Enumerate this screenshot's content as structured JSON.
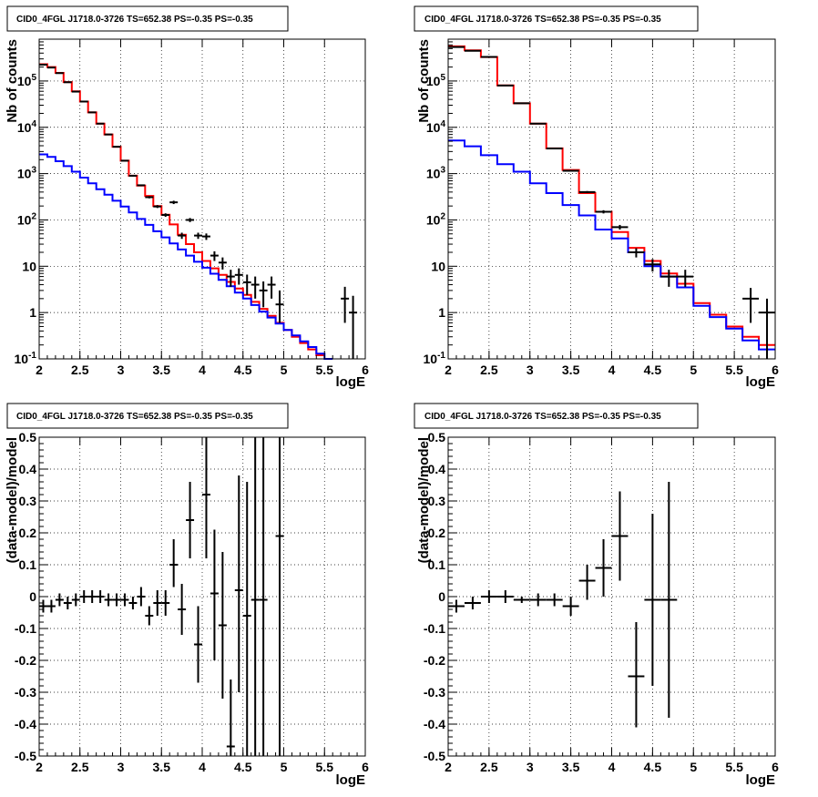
{
  "chart_data": [
    {
      "type": "line",
      "panel": "top-left",
      "title": "CID0_4FGL J1718.0-3726 TS=652.38 PS=-0.35 PS=-0.35",
      "xlabel": "logE",
      "ylabel": "Nb of counts",
      "xlim": [
        2,
        6
      ],
      "ylim": [
        0.1,
        800000
      ],
      "yscale": "log",
      "grid": true,
      "xticks": [
        "2",
        "2.5",
        "3",
        "3.5",
        "4",
        "4.5",
        "5",
        "5.5",
        "6"
      ],
      "yticks": [
        {
          "v": 0.1,
          "label": "10^-1"
        },
        {
          "v": 1,
          "label": "1"
        },
        {
          "v": 10,
          "label": "10"
        },
        {
          "v": 100,
          "label": "10^2"
        },
        {
          "v": 1000,
          "label": "10^3"
        },
        {
          "v": 10000,
          "label": "10^4"
        },
        {
          "v": 100000,
          "label": "10^5"
        }
      ],
      "bin_edges": [
        2.0,
        2.1,
        2.2,
        2.3,
        2.4,
        2.5,
        2.6,
        2.7,
        2.8,
        2.9,
        3.0,
        3.1,
        3.2,
        3.3,
        3.4,
        3.5,
        3.6,
        3.7,
        3.8,
        3.9,
        4.0,
        4.1,
        4.2,
        4.3,
        4.4,
        4.5,
        4.6,
        4.7,
        4.8,
        4.9,
        5.0,
        5.1,
        5.2,
        5.3,
        5.4,
        5.5,
        5.6,
        5.7,
        5.8,
        5.9,
        6.0
      ],
      "series": [
        {
          "name": "",
          "style": "step",
          "color": "#ff0000",
          "values": [
            230000,
            200000,
            150000,
            95000,
            60000,
            36000,
            21000,
            12000,
            7000,
            3800,
            1900,
            900,
            550,
            330,
            200,
            130,
            80,
            48,
            30,
            20,
            13,
            9,
            6.5,
            4.6,
            3.3,
            2.4,
            1.7,
            1.2,
            0.85,
            0.6,
            0.42,
            0.3,
            0.22,
            0.16,
            0.12
          ]
        },
        {
          "name": "",
          "style": "step",
          "color": "#0000ff",
          "values": [
            2600,
            2300,
            1850,
            1450,
            1100,
            820,
            620,
            460,
            350,
            260,
            195,
            145,
            105,
            78,
            57,
            42,
            31,
            23,
            17,
            12.5,
            9.3,
            6.9,
            5.1,
            3.7,
            2.7,
            2.0,
            1.45,
            1.05,
            0.78,
            0.58,
            0.42,
            0.32,
            0.24,
            0.18,
            0.13,
            0.1
          ]
        },
        {
          "name": "",
          "style": "errorbar",
          "color": "#000000",
          "points": [
            {
              "x": 2.05,
              "y": 225000,
              "ylo": 225000,
              "yhi": 226000
            },
            {
              "x": 2.15,
              "y": 195000,
              "ylo": 194000,
              "yhi": 196000
            },
            {
              "x": 2.25,
              "y": 148000,
              "ylo": 147000,
              "yhi": 149000
            },
            {
              "x": 2.35,
              "y": 94000,
              "ylo": 93000,
              "yhi": 95000
            },
            {
              "x": 2.45,
              "y": 59000,
              "ylo": 58500,
              "yhi": 59500
            },
            {
              "x": 2.55,
              "y": 36000,
              "ylo": 35600,
              "yhi": 36400
            },
            {
              "x": 2.65,
              "y": 21000,
              "ylo": 20700,
              "yhi": 21300
            },
            {
              "x": 2.75,
              "y": 12000,
              "ylo": 11800,
              "yhi": 12200
            },
            {
              "x": 2.85,
              "y": 7000,
              "ylo": 6900,
              "yhi": 7100
            },
            {
              "x": 2.95,
              "y": 3800,
              "ylo": 3740,
              "yhi": 3860
            },
            {
              "x": 3.05,
              "y": 1900,
              "ylo": 1860,
              "yhi": 1940
            },
            {
              "x": 3.15,
              "y": 900,
              "ylo": 870,
              "yhi": 930
            },
            {
              "x": 3.25,
              "y": 560,
              "ylo": 536,
              "yhi": 584
            },
            {
              "x": 3.35,
              "y": 310,
              "ylo": 292,
              "yhi": 328
            },
            {
              "x": 3.45,
              "y": 195,
              "ylo": 181,
              "yhi": 209
            },
            {
              "x": 3.55,
              "y": 128,
              "ylo": 117,
              "yhi": 139
            },
            {
              "x": 3.65,
              "y": 240,
              "ylo": 220,
              "yhi": 260
            },
            {
              "x": 3.75,
              "y": 46,
              "ylo": 39,
              "yhi": 53
            },
            {
              "x": 3.85,
              "y": 100,
              "ylo": 90,
              "yhi": 110
            },
            {
              "x": 3.95,
              "y": 46,
              "ylo": 39,
              "yhi": 53
            },
            {
              "x": 4.05,
              "y": 44,
              "ylo": 37,
              "yhi": 51
            },
            {
              "x": 4.15,
              "y": 17,
              "ylo": 13,
              "yhi": 21
            },
            {
              "x": 4.25,
              "y": 12,
              "ylo": 8.5,
              "yhi": 15.5
            },
            {
              "x": 4.35,
              "y": 6,
              "ylo": 3.6,
              "yhi": 8.4
            },
            {
              "x": 4.45,
              "y": 6.5,
              "ylo": 4,
              "yhi": 9
            },
            {
              "x": 4.55,
              "y": 4.5,
              "ylo": 2.4,
              "yhi": 6.6
            },
            {
              "x": 4.65,
              "y": 4,
              "ylo": 2,
              "yhi": 6
            },
            {
              "x": 4.75,
              "y": 3,
              "ylo": 1.3,
              "yhi": 4.7
            },
            {
              "x": 4.85,
              "y": 4,
              "ylo": 2,
              "yhi": 6
            },
            {
              "x": 4.95,
              "y": 1.5,
              "ylo": 0.6,
              "yhi": 3
            },
            {
              "x": 5.75,
              "y": 2,
              "ylo": 0.6,
              "yhi": 3.6
            },
            {
              "x": 5.85,
              "y": 1,
              "ylo": 0.1,
              "yhi": 2.3
            }
          ]
        }
      ]
    },
    {
      "type": "line",
      "panel": "top-right",
      "title": "CID0_4FGL J1718.0-3726 TS=652.38 PS=-0.35 PS=-0.35",
      "xlabel": "logE",
      "ylabel": "Nb of counts",
      "xlim": [
        2,
        6
      ],
      "ylim": [
        0.1,
        800000
      ],
      "yscale": "log",
      "grid": true,
      "xticks": [
        "2",
        "2.5",
        "3",
        "3.5",
        "4",
        "4.5",
        "5",
        "5.5",
        "6"
      ],
      "yticks": [
        {
          "v": 0.1,
          "label": "10^-1"
        },
        {
          "v": 1,
          "label": "1"
        },
        {
          "v": 10,
          "label": "10"
        },
        {
          "v": 100,
          "label": "10^2"
        },
        {
          "v": 1000,
          "label": "10^3"
        },
        {
          "v": 10000,
          "label": "10^4"
        },
        {
          "v": 100000,
          "label": "10^5"
        }
      ],
      "bin_edges": [
        2.0,
        2.2,
        2.4,
        2.6,
        2.8,
        3.0,
        3.2,
        3.4,
        3.6,
        3.8,
        4.0,
        4.2,
        4.4,
        4.6,
        4.8,
        5.0,
        5.2,
        5.4,
        5.6,
        5.8,
        6.0
      ],
      "series": [
        {
          "name": "",
          "style": "step",
          "color": "#ff0000",
          "values": [
            560000,
            460000,
            330000,
            80000,
            33000,
            12000,
            3500,
            1200,
            380,
            150,
            55,
            25,
            13,
            7,
            4.2,
            1.6,
            0.9,
            0.5,
            0.3,
            0.2
          ]
        },
        {
          "name": "",
          "style": "step",
          "color": "#0000ff",
          "values": [
            5200,
            3900,
            2500,
            1600,
            1100,
            620,
            380,
            210,
            125,
            62,
            40,
            20,
            10,
            6,
            3.5,
            1.4,
            0.8,
            0.45,
            0.25,
            0.16
          ]
        },
        {
          "name": "",
          "style": "errorbar",
          "color": "#000000",
          "points": [
            {
              "x": 2.1,
              "y": 540000,
              "ylo": 539000,
              "yhi": 541000
            },
            {
              "x": 2.3,
              "y": 450000,
              "ylo": 449000,
              "yhi": 451000
            },
            {
              "x": 2.5,
              "y": 330000,
              "ylo": 329000,
              "yhi": 331000
            },
            {
              "x": 2.7,
              "y": 80000,
              "ylo": 79700,
              "yhi": 80300
            },
            {
              "x": 2.9,
              "y": 33000,
              "ylo": 32800,
              "yhi": 33200
            },
            {
              "x": 3.1,
              "y": 12000,
              "ylo": 11900,
              "yhi": 12100
            },
            {
              "x": 3.3,
              "y": 3500,
              "ylo": 3440,
              "yhi": 3560
            },
            {
              "x": 3.5,
              "y": 1150,
              "ylo": 1116,
              "yhi": 1184
            },
            {
              "x": 3.7,
              "y": 400,
              "ylo": 380,
              "yhi": 420
            },
            {
              "x": 3.9,
              "y": 150,
              "ylo": 138,
              "yhi": 162
            },
            {
              "x": 4.1,
              "y": 70,
              "ylo": 62,
              "yhi": 78
            },
            {
              "x": 4.3,
              "y": 20,
              "ylo": 15.5,
              "yhi": 24.5
            },
            {
              "x": 4.5,
              "y": 11,
              "ylo": 7.7,
              "yhi": 14.3
            },
            {
              "x": 4.7,
              "y": 6,
              "ylo": 3.6,
              "yhi": 8.4
            },
            {
              "x": 4.9,
              "y": 6,
              "ylo": 3.6,
              "yhi": 8.4
            },
            {
              "x": 5.7,
              "y": 2,
              "ylo": 0.6,
              "yhi": 3.4
            },
            {
              "x": 5.9,
              "y": 1,
              "ylo": 0.1,
              "yhi": 2
            }
          ]
        }
      ]
    },
    {
      "type": "scatter",
      "panel": "bottom-left",
      "title": "CID0_4FGL J1718.0-3726 TS=652.38 PS=-0.35 PS=-0.35",
      "xlabel": "logE",
      "ylabel": "(data-model)/model",
      "xlim": [
        2,
        6
      ],
      "ylim": [
        -0.5,
        0.5
      ],
      "grid": true,
      "xticks": [
        "2",
        "2.5",
        "3",
        "3.5",
        "4",
        "4.5",
        "5",
        "5.5",
        "6"
      ],
      "yticks": [
        "-0.5",
        "-0.4",
        "-0.3",
        "-0.2",
        "-0.1",
        "0",
        "0.1",
        "0.2",
        "0.3",
        "0.4",
        "0.5"
      ],
      "xerr": 0.05,
      "series": [
        {
          "name": "",
          "style": "errorbar",
          "color": "#000000",
          "points": [
            {
              "x": 2.05,
              "y": -0.03,
              "ylo": -0.05,
              "yhi": -0.01
            },
            {
              "x": 2.15,
              "y": -0.03,
              "ylo": -0.05,
              "yhi": -0.01
            },
            {
              "x": 2.25,
              "y": -0.01,
              "ylo": -0.03,
              "yhi": 0.01
            },
            {
              "x": 2.35,
              "y": -0.02,
              "ylo": -0.04,
              "yhi": 0.0
            },
            {
              "x": 2.45,
              "y": -0.01,
              "ylo": -0.03,
              "yhi": 0.01
            },
            {
              "x": 2.55,
              "y": 0.0,
              "ylo": -0.02,
              "yhi": 0.02
            },
            {
              "x": 2.65,
              "y": 0.0,
              "ylo": -0.02,
              "yhi": 0.02
            },
            {
              "x": 2.75,
              "y": 0.0,
              "ylo": -0.02,
              "yhi": 0.02
            },
            {
              "x": 2.85,
              "y": -0.01,
              "ylo": -0.03,
              "yhi": 0.01
            },
            {
              "x": 2.95,
              "y": -0.01,
              "ylo": -0.03,
              "yhi": 0.01
            },
            {
              "x": 3.05,
              "y": -0.01,
              "ylo": -0.03,
              "yhi": 0.01
            },
            {
              "x": 3.15,
              "y": -0.02,
              "ylo": -0.04,
              "yhi": 0.0
            },
            {
              "x": 3.25,
              "y": 0.0,
              "ylo": -0.03,
              "yhi": 0.03
            },
            {
              "x": 3.35,
              "y": -0.06,
              "ylo": -0.09,
              "yhi": -0.03
            },
            {
              "x": 3.45,
              "y": -0.02,
              "ylo": -0.06,
              "yhi": 0.02
            },
            {
              "x": 3.55,
              "y": -0.02,
              "ylo": -0.06,
              "yhi": 0.02
            },
            {
              "x": 3.65,
              "y": 0.1,
              "ylo": 0.03,
              "yhi": 0.18
            },
            {
              "x": 3.75,
              "y": -0.04,
              "ylo": -0.12,
              "yhi": 0.04
            },
            {
              "x": 3.85,
              "y": 0.24,
              "ylo": 0.12,
              "yhi": 0.36
            },
            {
              "x": 3.95,
              "y": -0.15,
              "ylo": -0.27,
              "yhi": -0.03
            },
            {
              "x": 4.05,
              "y": 0.32,
              "ylo": 0.12,
              "yhi": 0.52
            },
            {
              "x": 4.15,
              "y": 0.01,
              "ylo": -0.2,
              "yhi": 0.21
            },
            {
              "x": 4.25,
              "y": -0.09,
              "ylo": -0.32,
              "yhi": 0.14
            },
            {
              "x": 4.35,
              "y": -0.47,
              "ylo": -0.74,
              "yhi": -0.26
            },
            {
              "x": 4.45,
              "y": 0.02,
              "ylo": -0.3,
              "yhi": 0.38
            },
            {
              "x": 4.55,
              "y": -0.06,
              "ylo": -0.5,
              "yhi": 0.36
            },
            {
              "x": 4.65,
              "y": -0.01,
              "ylo": -0.5,
              "yhi": 0.5
            },
            {
              "x": 4.75,
              "y": -0.01,
              "ylo": -0.5,
              "yhi": 0.5
            },
            {
              "x": 4.95,
              "y": 0.19,
              "ylo": -0.5,
              "yhi": 0.5
            }
          ]
        }
      ]
    },
    {
      "type": "scatter",
      "panel": "bottom-right",
      "title": "CID0_4FGL J1718.0-3726 TS=652.38 PS=-0.35 PS=-0.35",
      "xlabel": "logE",
      "ylabel": "(data-model)/model",
      "xlim": [
        2,
        6
      ],
      "ylim": [
        -0.5,
        0.5
      ],
      "grid": true,
      "xticks": [
        "2",
        "2.5",
        "3",
        "3.5",
        "4",
        "4.5",
        "5",
        "5.5",
        "6"
      ],
      "yticks": [
        "-0.5",
        "-0.4",
        "-0.3",
        "-0.2",
        "-0.1",
        "0",
        "0.1",
        "0.2",
        "0.3",
        "0.4",
        "0.5"
      ],
      "xerr": 0.1,
      "series": [
        {
          "name": "",
          "style": "errorbar",
          "color": "#000000",
          "points": [
            {
              "x": 2.1,
              "y": -0.03,
              "ylo": -0.05,
              "yhi": -0.01
            },
            {
              "x": 2.3,
              "y": -0.02,
              "ylo": -0.04,
              "yhi": 0.0
            },
            {
              "x": 2.5,
              "y": 0.0,
              "ylo": -0.02,
              "yhi": 0.02
            },
            {
              "x": 2.7,
              "y": 0.0,
              "ylo": -0.02,
              "yhi": 0.02
            },
            {
              "x": 2.9,
              "y": -0.01,
              "ylo": -0.02,
              "yhi": 0.0
            },
            {
              "x": 3.1,
              "y": -0.01,
              "ylo": -0.03,
              "yhi": 0.01
            },
            {
              "x": 3.3,
              "y": -0.01,
              "ylo": -0.03,
              "yhi": 0.01
            },
            {
              "x": 3.5,
              "y": -0.03,
              "ylo": -0.06,
              "yhi": 0.0
            },
            {
              "x": 3.7,
              "y": 0.05,
              "ylo": -0.01,
              "yhi": 0.1
            },
            {
              "x": 3.9,
              "y": 0.09,
              "ylo": 0.0,
              "yhi": 0.18
            },
            {
              "x": 4.1,
              "y": 0.19,
              "ylo": 0.05,
              "yhi": 0.33
            },
            {
              "x": 4.3,
              "y": -0.25,
              "ylo": -0.41,
              "yhi": -0.08
            },
            {
              "x": 4.5,
              "y": -0.01,
              "ylo": -0.28,
              "yhi": 0.26
            },
            {
              "x": 4.7,
              "y": -0.01,
              "ylo": -0.38,
              "yhi": 0.36
            }
          ]
        }
      ]
    }
  ]
}
